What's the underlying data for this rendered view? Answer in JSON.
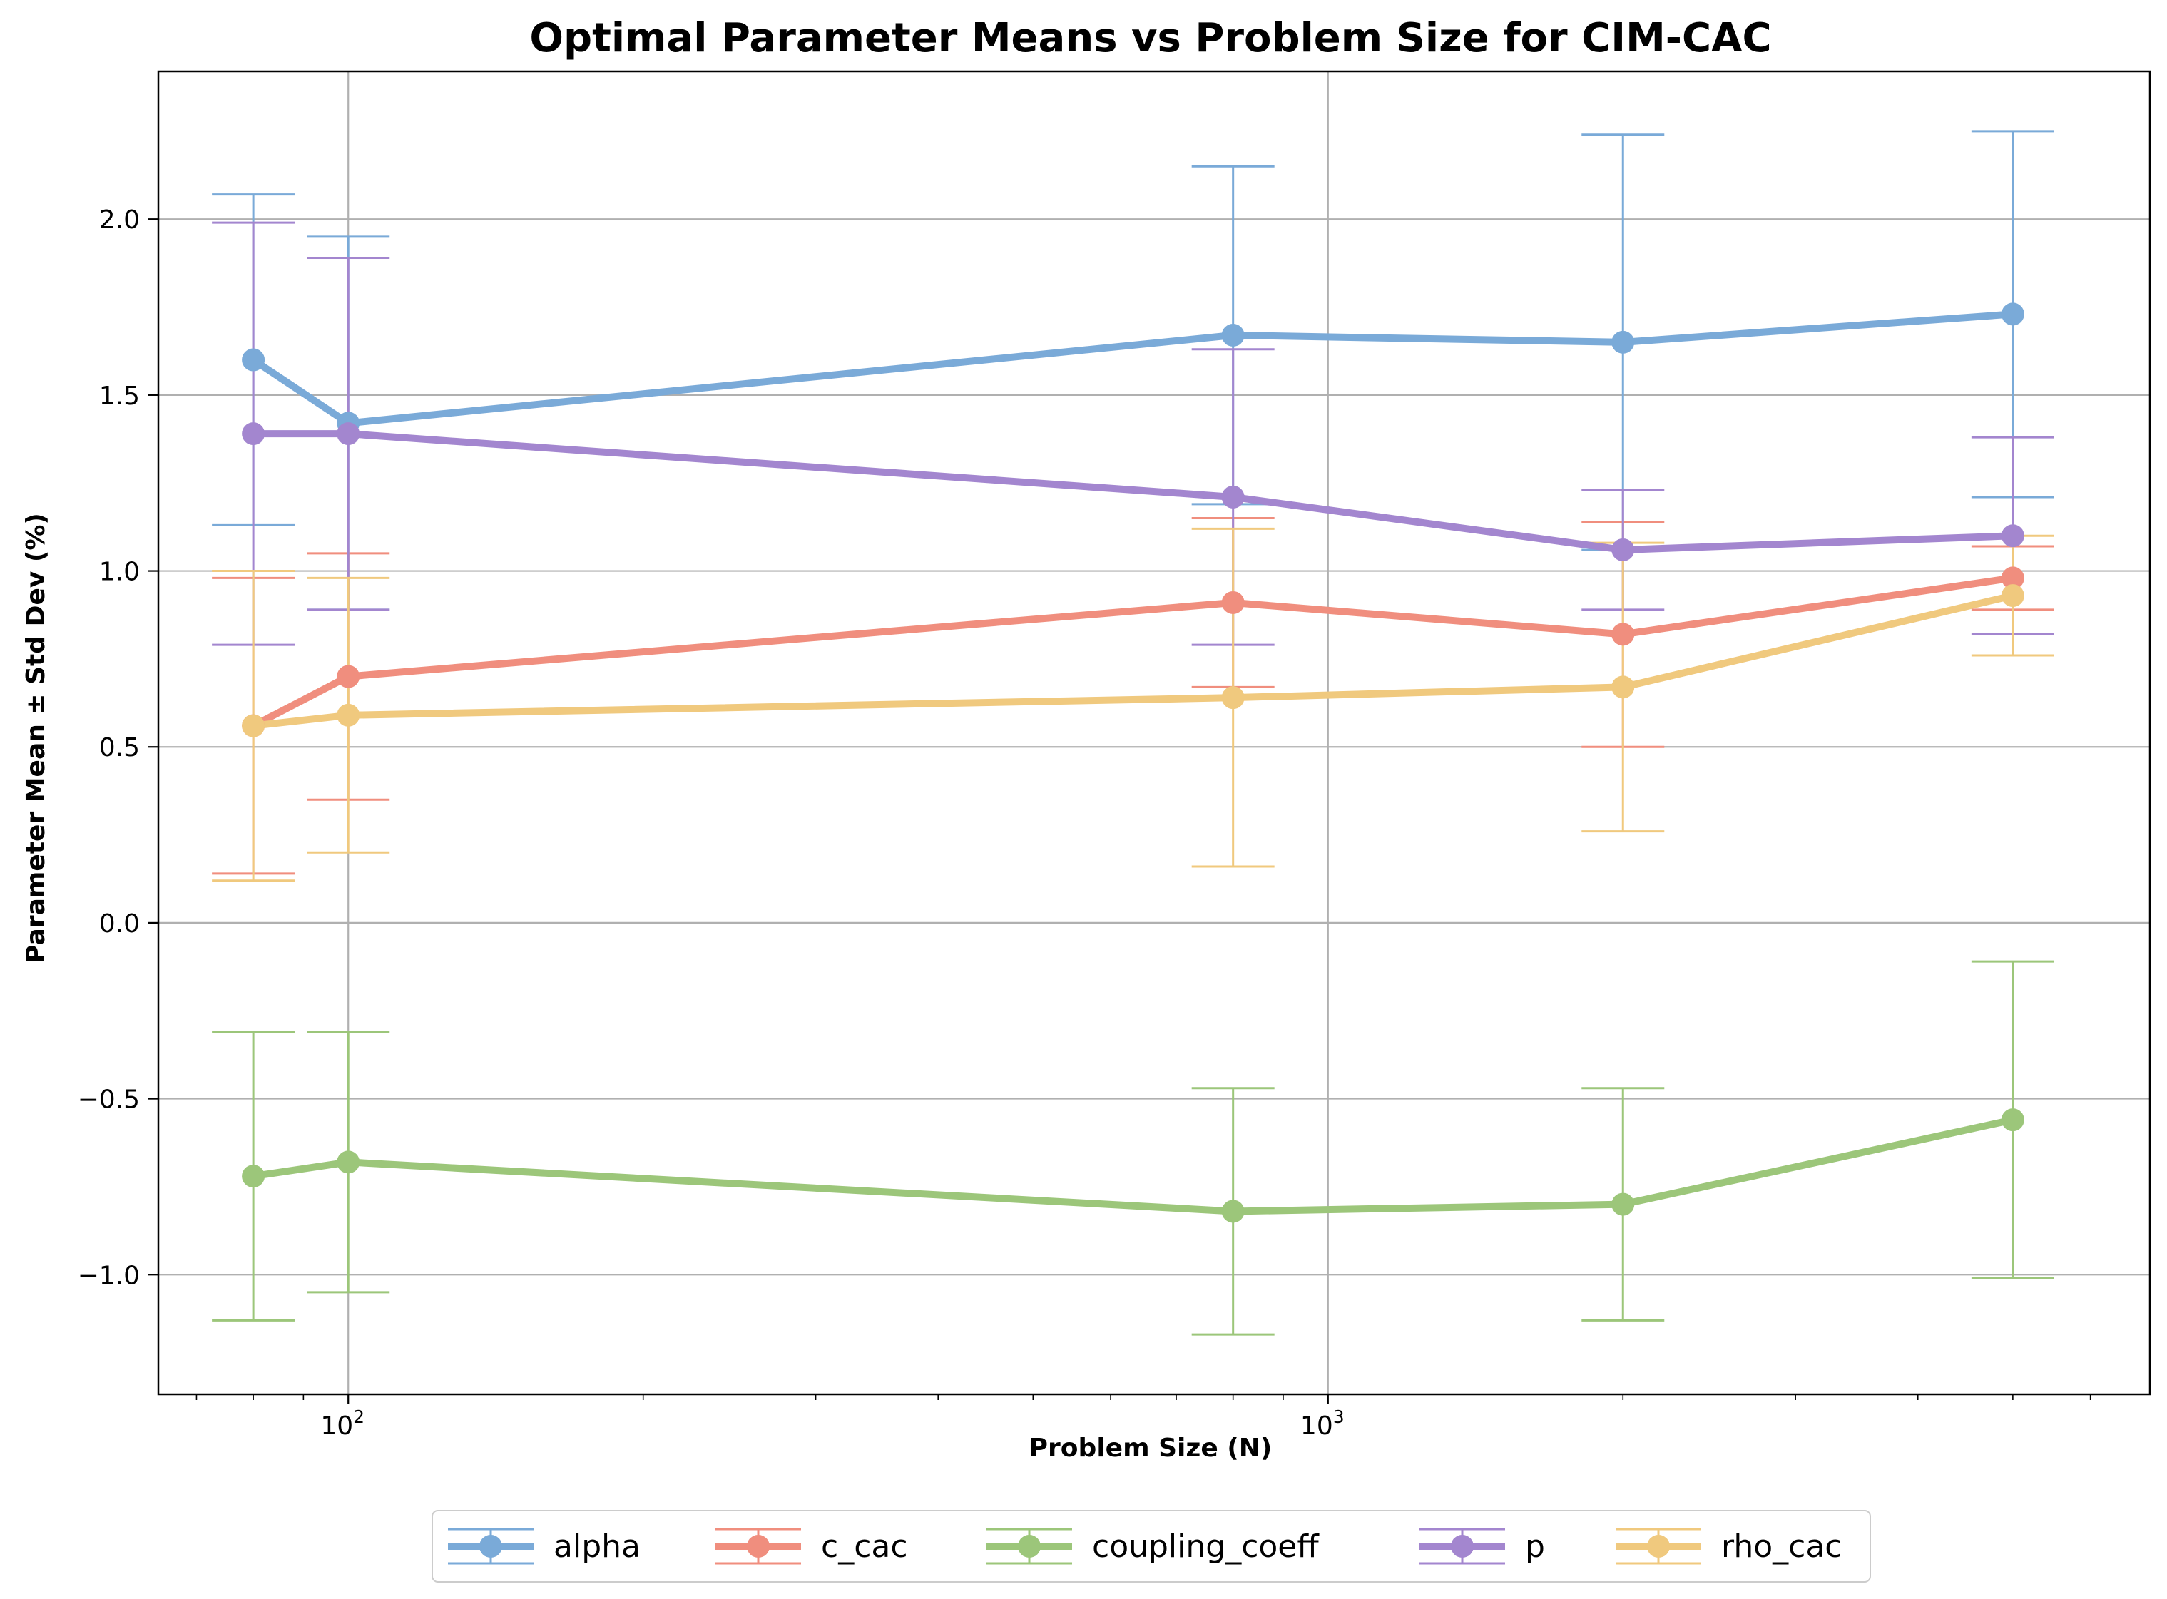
{
  "chart_data": {
    "type": "line",
    "title": "Optimal Parameter Means vs Problem Size for CIM-CAC",
    "xlabel": "Problem Size (N)",
    "ylabel": "Parameter Mean ± Std Dev (%)",
    "x_scale": "log",
    "xlim": [
      64,
      6900
    ],
    "ylim": [
      -1.34,
      2.42
    ],
    "x_ticks": [
      {
        "value": 100,
        "base": "10",
        "exp": "2"
      },
      {
        "value": 1000,
        "base": "10",
        "exp": "3"
      }
    ],
    "y_ticks": [
      {
        "value": -1.0,
        "label": "−1.0"
      },
      {
        "value": -0.5,
        "label": "−0.5"
      },
      {
        "value": 0.0,
        "label": "0.0"
      },
      {
        "value": 0.5,
        "label": "0.5"
      },
      {
        "value": 1.0,
        "label": "1.0"
      },
      {
        "value": 1.5,
        "label": "1.5"
      },
      {
        "value": 2.0,
        "label": "2.0"
      }
    ],
    "grid": true,
    "legend_position": "bottom-center",
    "x": [
      80,
      100,
      800,
      2000,
      5000
    ],
    "series": [
      {
        "name": "alpha",
        "color": "#7aaad8",
        "values": [
          1.6,
          1.42,
          1.67,
          1.65,
          1.73
        ],
        "errors": [
          0.47,
          0.53,
          0.48,
          0.59,
          0.52
        ]
      },
      {
        "name": "c_cac",
        "color": "#f08e7e",
        "values": [
          0.56,
          0.7,
          0.91,
          0.82,
          0.98
        ],
        "errors": [
          0.42,
          0.35,
          0.24,
          0.32,
          0.09
        ]
      },
      {
        "name": "coupling_coeff",
        "color": "#9cc67a",
        "values": [
          -0.72,
          -0.68,
          -0.82,
          -0.8,
          -0.56
        ],
        "errors": [
          0.41,
          0.37,
          0.35,
          0.33,
          0.45
        ]
      },
      {
        "name": "p",
        "color": "#a386cf",
        "values": [
          1.39,
          1.39,
          1.21,
          1.06,
          1.1
        ],
        "errors": [
          0.6,
          0.5,
          0.42,
          0.17,
          0.28
        ]
      },
      {
        "name": "rho_cac",
        "color": "#f0c97e",
        "values": [
          0.56,
          0.59,
          0.64,
          0.67,
          0.93
        ],
        "errors": [
          0.44,
          0.39,
          0.48,
          0.41,
          0.17
        ]
      }
    ]
  }
}
